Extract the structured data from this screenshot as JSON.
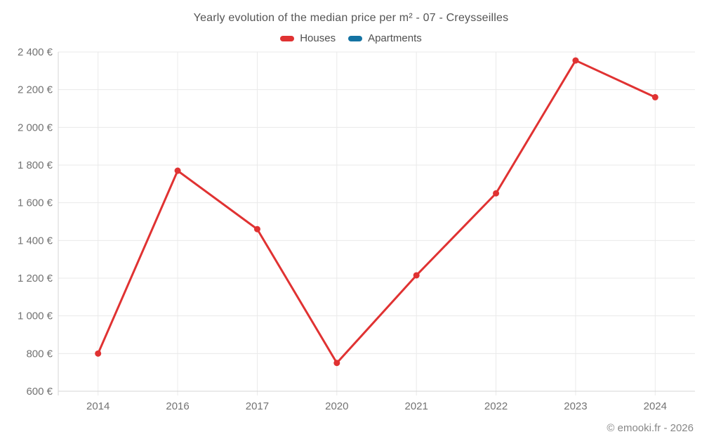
{
  "chart_data": {
    "type": "line",
    "title": "Yearly evolution of the median price per m² - 07 - Creysseilles",
    "categories": [
      "2014",
      "2016",
      "2017",
      "2020",
      "2021",
      "2022",
      "2023",
      "2024"
    ],
    "series": [
      {
        "name": "Houses",
        "color": "#e03232",
        "values": [
          800,
          1770,
          1460,
          750,
          1215,
          1650,
          2355,
          2160
        ]
      },
      {
        "name": "Apartments",
        "color": "#1473a3",
        "values": []
      }
    ],
    "xlabel": "",
    "ylabel": "",
    "ylim": [
      600,
      2400
    ],
    "ytick_step": 200,
    "ytick_suffix": " €",
    "grid": true,
    "legend_position": "top"
  },
  "footer": {
    "copyright": "© emooki.fr - 2026"
  },
  "colors": {
    "background": "#ffffff",
    "grid": "#eaeaea",
    "axis": "#d6d6d6",
    "tick_label": "#737373",
    "title": "#545454",
    "legend_label": "#4f4f4f",
    "footer": "#878787"
  }
}
